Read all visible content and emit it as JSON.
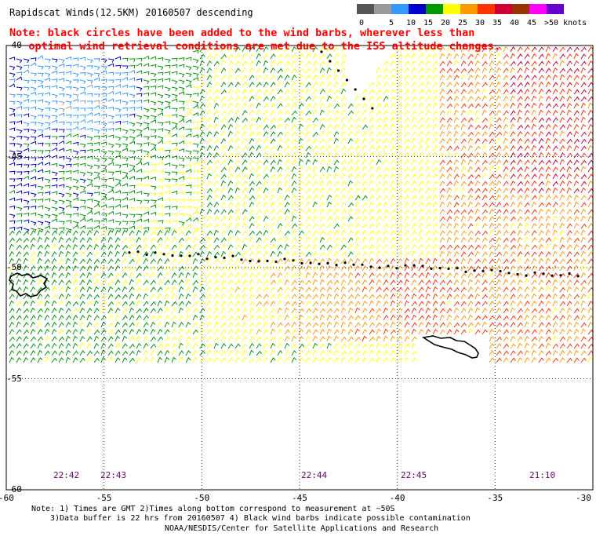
{
  "title": "Rapidscat Winds(12.5KM) 20160507 descending",
  "note_lines": [
    "Note: black circles have been added to the wind barbs, wherever less than",
    "   optimal wind retrieval conditions are met due to the ISS altitude changes."
  ],
  "legend": {
    "labels": [
      "0",
      "5",
      "10",
      "15",
      "20",
      "25",
      "30",
      "35",
      "40",
      "45",
      ">50 knots"
    ],
    "colors": [
      "#555555",
      "#999999",
      "#3399ff",
      "#0000cc",
      "#009900",
      "#ffff00",
      "#ff9900",
      "#ff3300",
      "#cc0033",
      "#993300",
      "#ff00ff",
      "#6600cc"
    ]
  },
  "lat_labels": [
    "-40",
    "-45",
    "-50",
    "-55",
    "-60"
  ],
  "lon_labels": [
    "-60",
    "-55",
    "-50",
    "-45",
    "-40",
    "-35",
    "-30"
  ],
  "time_labels": [
    "22:42",
    "22:43",
    "22:44",
    "22:45",
    "21:10"
  ],
  "footer": {
    "line1": "Note: 1) Times are GMT 2)Times along bottom correspond to measurement at ~50S",
    "line2": "3)Data buffer is 22 hrs from 20160507 4) Black wind barbs indicate possible contamination",
    "line3": "NOAA/NESDIS/Center for Satellite Applications and Research"
  }
}
